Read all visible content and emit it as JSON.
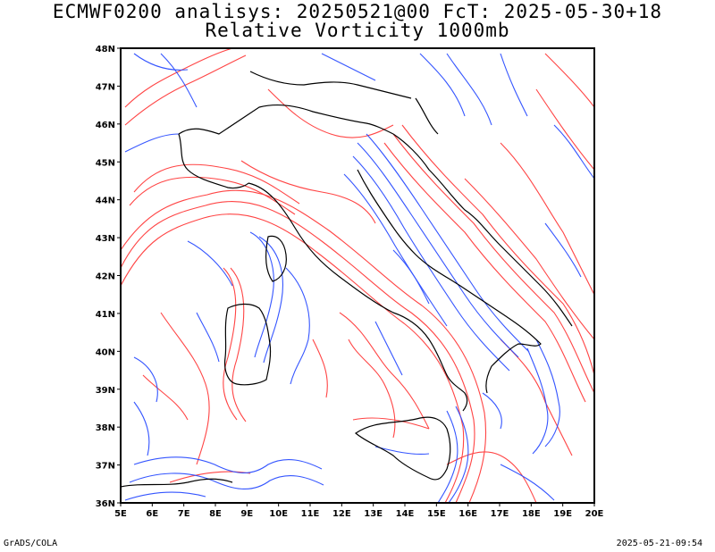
{
  "header": {
    "line1": "ECMWF0200 analisys: 20250521@00 FcT: 2025-05-30+18",
    "line2": "Relative Vorticity 1000mb"
  },
  "map": {
    "lon_range": [
      5,
      20
    ],
    "lat_range": [
      36,
      48
    ],
    "lon_labels": [
      "5E",
      "6E",
      "7E",
      "8E",
      "9E",
      "10E",
      "11E",
      "12E",
      "13E",
      "14E",
      "15E",
      "16E",
      "17E",
      "18E",
      "19E",
      "20E"
    ],
    "lat_labels": [
      "36N",
      "37N",
      "38N",
      "39N",
      "40N",
      "41N",
      "42N",
      "43N",
      "44N",
      "45N",
      "46N",
      "47N",
      "48N"
    ],
    "colors": {
      "positive_contour": "#ff3a3a",
      "negative_contour": "#2a4cff",
      "coastline": "#000000",
      "frame": "#000000"
    }
  },
  "footer": {
    "left": "GrADS/COLA",
    "right": "2025-05-21-09:54"
  }
}
